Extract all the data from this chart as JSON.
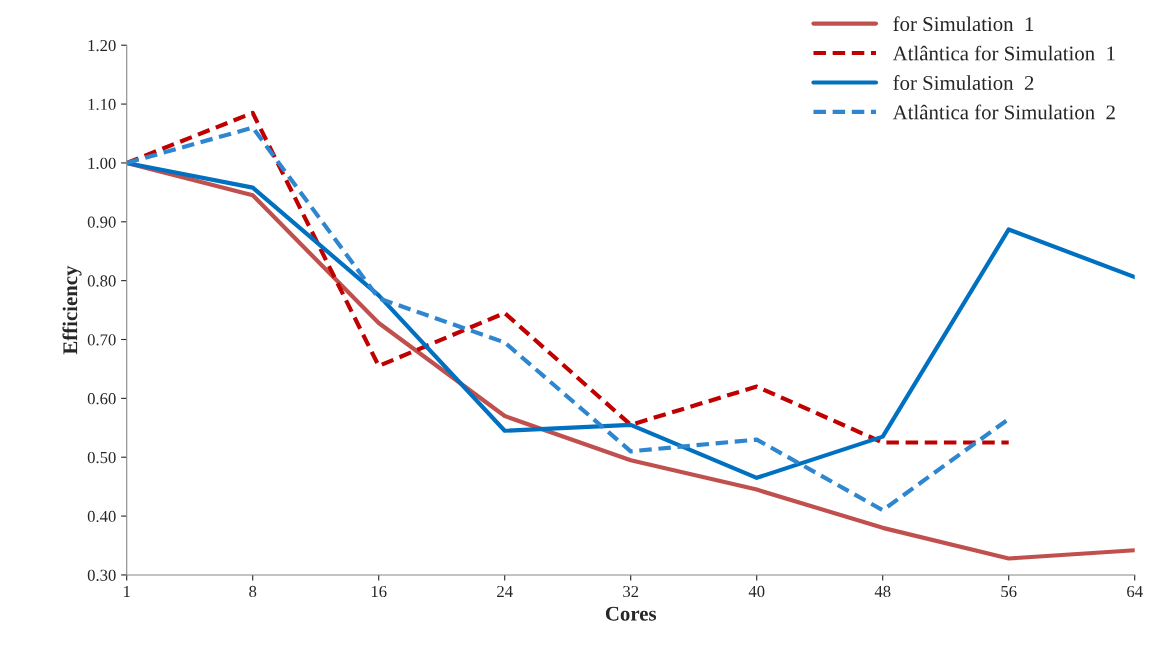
{
  "chart_data": {
    "type": "line",
    "xlabel": "Cores",
    "ylabel": "Efficiency",
    "categories": [
      "1",
      "8",
      "16",
      "24",
      "32",
      "40",
      "48",
      "56",
      "64"
    ],
    "ylim": [
      0.3,
      1.2
    ],
    "yticks": [
      {
        "value": 0.3,
        "label": "0.30"
      },
      {
        "value": 0.4,
        "label": "0.40"
      },
      {
        "value": 0.5,
        "label": "0.50"
      },
      {
        "value": 0.6,
        "label": "0.60"
      },
      {
        "value": 0.7,
        "label": "0.70"
      },
      {
        "value": 0.8,
        "label": "0.80"
      },
      {
        "value": 0.9,
        "label": "0.90"
      },
      {
        "value": 1.0,
        "label": "1.00"
      },
      {
        "value": 1.1,
        "label": "1.10"
      },
      {
        "value": 1.2,
        "label": "1.20"
      }
    ],
    "grid": false,
    "legend": "top right",
    "marker": "none",
    "series": [
      {
        "name": "for Simulation  1",
        "color": "#c0504d",
        "line_style": "solid",
        "values": [
          1.0,
          0.945,
          0.728,
          0.57,
          0.495,
          0.445,
          0.38,
          0.328,
          0.342
        ]
      },
      {
        "name": "Atlântica for Simulation  1",
        "color": "#c00000",
        "line_style": "dashed",
        "values": [
          1.0,
          1.085,
          0.655,
          0.745,
          0.555,
          0.62,
          0.525,
          0.525,
          null
        ]
      },
      {
        "name": "for Simulation  2",
        "color": "#0070c0",
        "line_style": "solid",
        "values": [
          1.0,
          0.958,
          0.775,
          0.545,
          0.555,
          0.465,
          0.535,
          0.887,
          0.806
        ]
      },
      {
        "name": "Atlântica for Simulation  2",
        "color": "#2e86d0",
        "line_style": "dashed",
        "values": [
          1.0,
          1.06,
          0.77,
          0.695,
          0.51,
          0.53,
          0.41,
          0.565,
          null
        ]
      }
    ]
  }
}
